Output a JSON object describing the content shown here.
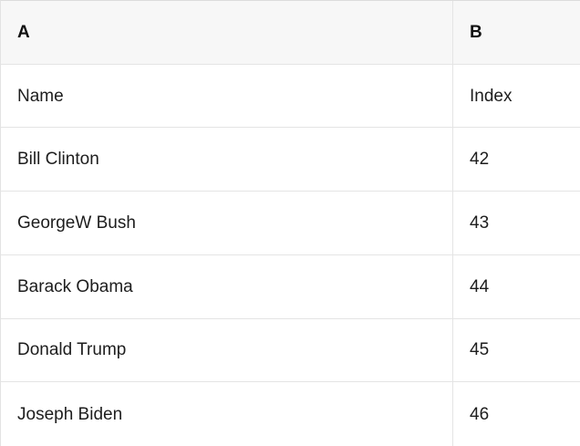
{
  "table": {
    "header": {
      "col_a": "A",
      "col_b": "B"
    },
    "rows": [
      {
        "a": "Name",
        "b": "Index"
      },
      {
        "a": "Bill Clinton",
        "b": "42"
      },
      {
        "a": "GeorgeW Bush",
        "b": "43"
      },
      {
        "a": "Barack Obama",
        "b": "44"
      },
      {
        "a": "Donald Trump",
        "b": "45"
      },
      {
        "a": "Joseph Biden",
        "b": "46"
      }
    ]
  },
  "colors": {
    "header_background": "#f7f7f7",
    "row_background": "#ffffff",
    "border": "#e4e4e4",
    "text": "#1d1d1d"
  }
}
